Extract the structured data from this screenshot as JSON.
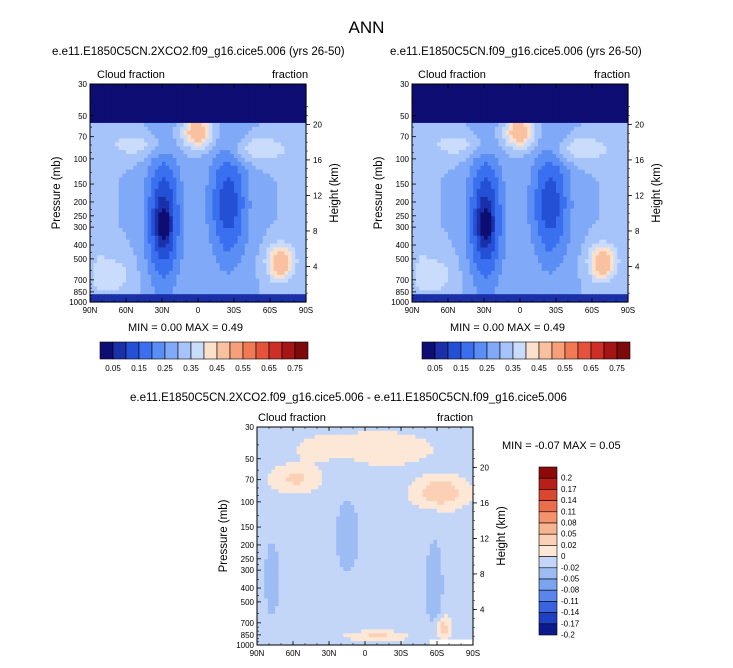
{
  "figure": {
    "title": "ANN"
  },
  "chart_data": [
    {
      "type": "heatmap",
      "title": "e.e11.E1850C5CN.2XCO2.f09_g16.cice5.006 (yrs 26-50)",
      "left_label": "Cloud fraction",
      "right_label": "fraction",
      "xlabel": "",
      "ylabel": "Pressure (mb)",
      "y2label": "Height (km)",
      "x_ticks": [
        "90N",
        "60N",
        "30N",
        "0",
        "30S",
        "60S",
        "90S"
      ],
      "y_ticks": [
        30,
        50,
        70,
        100,
        150,
        200,
        250,
        300,
        400,
        500,
        700,
        850,
        1000
      ],
      "y2_ticks": [
        4,
        8,
        12,
        16,
        20
      ],
      "ylim": [
        1000,
        30
      ],
      "stats": "MIN = 0.00   MAX = 0.49",
      "fields": {
        "min": 0.0,
        "max": 0.49
      }
    },
    {
      "type": "heatmap",
      "title": "e.e11.E1850C5CN.f09_g16.cice5.006 (yrs 26-50)",
      "left_label": "Cloud fraction",
      "right_label": "fraction",
      "xlabel": "",
      "ylabel": "Pressure (mb)",
      "y2label": "Height (km)",
      "x_ticks": [
        "90N",
        "60N",
        "30N",
        "0",
        "30S",
        "60S",
        "90S"
      ],
      "y_ticks": [
        30,
        50,
        70,
        100,
        150,
        200,
        250,
        300,
        400,
        500,
        700,
        850,
        1000
      ],
      "y2_ticks": [
        4,
        8,
        12,
        16,
        20
      ],
      "ylim": [
        1000,
        30
      ],
      "stats": "MIN = 0.00   MAX = 0.49",
      "fields": {
        "min": 0.0,
        "max": 0.49
      }
    },
    {
      "type": "heatmap",
      "title": "e.e11.E1850C5CN.2XCO2.f09_g16.cice5.006 - e.e11.E1850C5CN.f09_g16.cice5.006",
      "left_label": "Cloud fraction",
      "right_label": "fraction",
      "xlabel": "",
      "ylabel": "Pressure (mb)",
      "y2label": "Height (km)",
      "x_ticks": [
        "90N",
        "60N",
        "30N",
        "0",
        "30S",
        "60S",
        "90S"
      ],
      "y_ticks": [
        30,
        50,
        70,
        100,
        150,
        200,
        250,
        300,
        400,
        500,
        700,
        850,
        1000
      ],
      "y2_ticks": [
        4,
        8,
        12,
        16,
        20
      ],
      "ylim": [
        1000,
        30
      ],
      "stats": "MIN = -0.07   MAX =   0.05",
      "fields": {
        "min": -0.07,
        "max": 0.05
      }
    }
  ],
  "colorbars": {
    "absolute": {
      "colors": [
        "#0d0d73",
        "#1a2fa8",
        "#2450d6",
        "#3a6ff0",
        "#5b8ef4",
        "#80aaf7",
        "#a6c4f9",
        "#cadcfb",
        "#fbe0cc",
        "#f9c19f",
        "#f6a07a",
        "#f17a55",
        "#e5543a",
        "#cc2f25",
        "#a51515",
        "#7d0a0a"
      ],
      "labels": [
        "0.05",
        "0.15",
        "0.25",
        "0.35",
        "0.45",
        "0.55",
        "0.65",
        "0.75"
      ]
    },
    "difference": {
      "colors": [
        "#0d1a8c",
        "#1f3fc4",
        "#3a63de",
        "#5a85ea",
        "#7aa3f0",
        "#9dbcf4",
        "#c3d6f8",
        "#fde8d8",
        "#fbd0b5",
        "#f8b38f",
        "#f4926c",
        "#ec6d4b",
        "#d9472e",
        "#b81f18",
        "#8c0a0a"
      ],
      "labels": [
        "0.2",
        "0.17",
        "0.14",
        "0.11",
        "0.08",
        "0.05",
        "0.02",
        "0",
        "-0.02",
        "-0.05",
        "-0.08",
        "-0.11",
        "-0.14",
        "-0.17",
        "-0.2"
      ]
    }
  }
}
